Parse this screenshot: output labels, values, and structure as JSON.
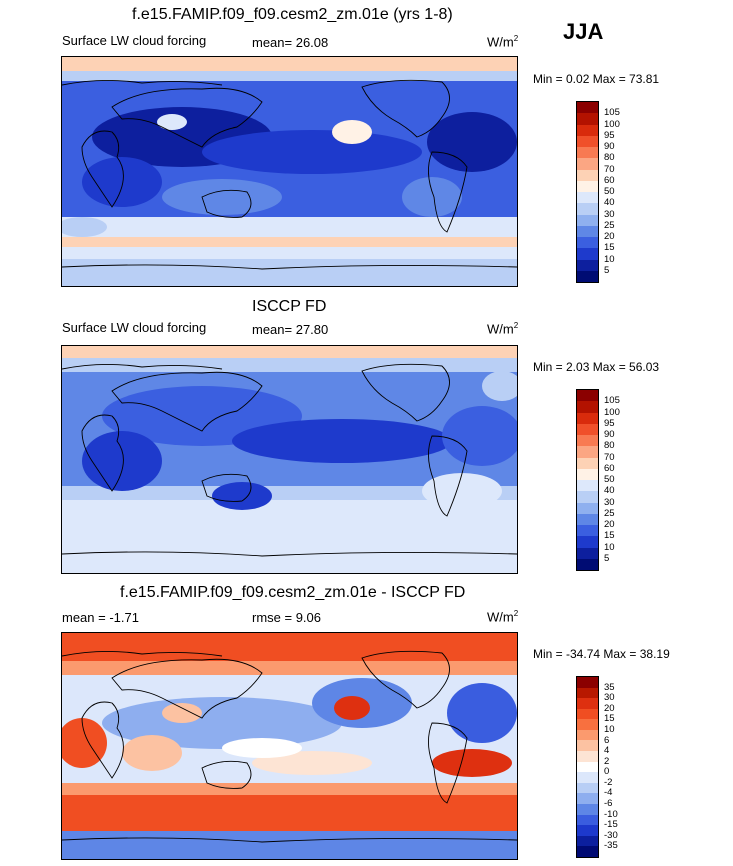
{
  "season": "JJA",
  "panels": [
    {
      "title": "f.e15.FAMIP.f09_f09.cesm2_zm.01e (yrs 1-8)",
      "left_label": "Surface LW cloud forcing",
      "mid_label": "mean=  26.08",
      "units": "W/m",
      "units_sup": "2",
      "minmax": "Min =   0.02 Max =  73.81",
      "colorbar": {
        "levels": [
          "105",
          "100",
          "95",
          "90",
          "80",
          "70",
          "60",
          "50",
          "40",
          "30",
          "25",
          "20",
          "15",
          "10",
          "5"
        ],
        "colors": [
          "#8b0000",
          "#b31200",
          "#d92b0c",
          "#f0502a",
          "#f87a52",
          "#fba683",
          "#fdd2b5",
          "#fff2e6",
          "#dde8fb",
          "#b9cff5",
          "#8fb0ef",
          "#5f87e6",
          "#3b5fe0",
          "#1e3acc",
          "#0d1f9e",
          "#000c73"
        ]
      }
    },
    {
      "title": "ISCCP FD",
      "left_label": "Surface LW cloud forcing",
      "mid_label": "mean=  27.80",
      "units": "W/m",
      "units_sup": "2",
      "minmax": "Min =   2.03 Max =  56.03",
      "colorbar": {
        "levels": [
          "105",
          "100",
          "95",
          "90",
          "80",
          "70",
          "60",
          "50",
          "40",
          "30",
          "25",
          "20",
          "15",
          "10",
          "5"
        ],
        "colors": [
          "#8b0000",
          "#b31200",
          "#d92b0c",
          "#f0502a",
          "#f87a52",
          "#fba683",
          "#fdd2b5",
          "#fff2e6",
          "#dde8fb",
          "#b9cff5",
          "#8fb0ef",
          "#5f87e6",
          "#3b5fe0",
          "#1e3acc",
          "#0d1f9e",
          "#000c73"
        ]
      }
    },
    {
      "title": "f.e15.FAMIP.f09_f09.cesm2_zm.01e - ISCCP FD",
      "left_label": "mean =  -1.71",
      "mid_label": "rmse =   9.06",
      "units": "W/m",
      "units_sup": "2",
      "minmax": "Min = -34.74 Max =  38.19",
      "colorbar": {
        "levels": [
          "35",
          "30",
          "20",
          "15",
          "10",
          "6",
          "4",
          "2",
          "0",
          "-2",
          "-4",
          "-6",
          "-10",
          "-15",
          "-30",
          "-35"
        ],
        "colors": [
          "#8b0000",
          "#b81800",
          "#de3010",
          "#f04e22",
          "#f8703f",
          "#fb9a6e",
          "#fcc2a2",
          "#fde4d4",
          "#ffffff",
          "#dce7fb",
          "#b8cef5",
          "#8eaeef",
          "#5e86e6",
          "#3a5ddf",
          "#1d39cc",
          "#0c1f9e",
          "#000a73"
        ]
      }
    }
  ]
}
